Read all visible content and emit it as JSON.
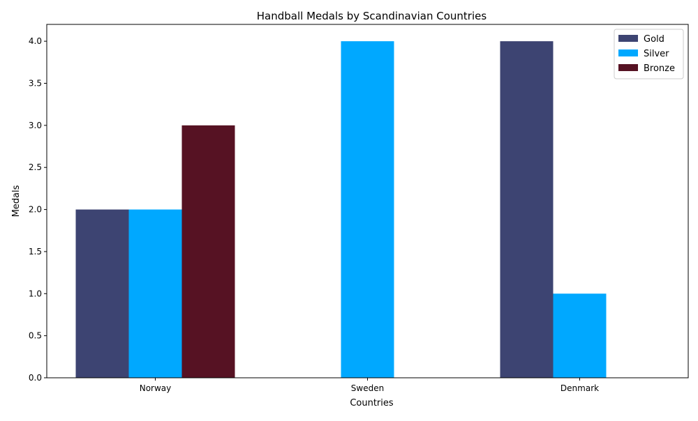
{
  "chart_data": {
    "type": "bar",
    "title": "Handball Medals by Scandinavian Countries",
    "xlabel": "Countries",
    "ylabel": "Medals",
    "categories": [
      "Norway",
      "Sweden",
      "Denmark"
    ],
    "series": [
      {
        "name": "Gold",
        "values": [
          2,
          0,
          4
        ],
        "color": "#3d4472"
      },
      {
        "name": "Silver",
        "values": [
          2,
          4,
          1
        ],
        "color": "#00a8ff"
      },
      {
        "name": "Bronze",
        "values": [
          3,
          0,
          0
        ],
        "color": "#561223"
      }
    ],
    "ylim": [
      0,
      4.2
    ],
    "yticks": [
      0.0,
      0.5,
      1.0,
      1.5,
      2.0,
      2.5,
      3.0,
      3.5,
      4.0
    ],
    "ytick_labels": [
      "0.0",
      "0.5",
      "1.0",
      "1.5",
      "2.0",
      "2.5",
      "3.0",
      "3.5",
      "4.0"
    ],
    "grid": false,
    "legend": "top-right"
  }
}
